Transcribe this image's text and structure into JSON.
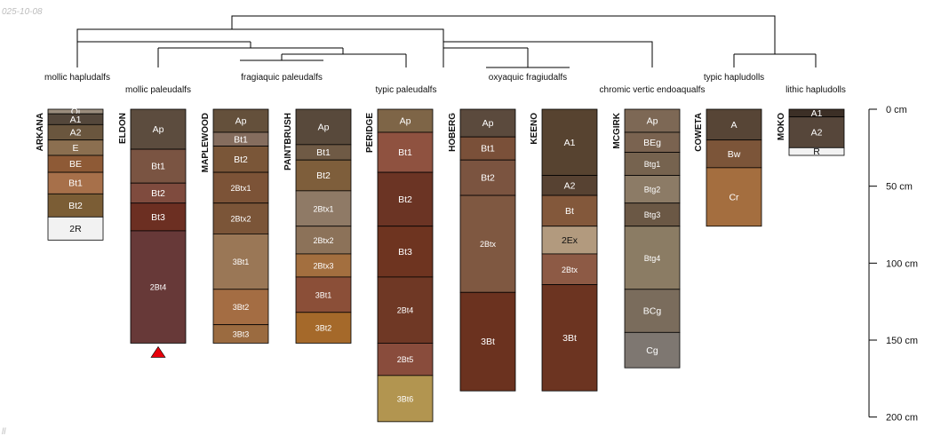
{
  "corner_top_left": "025-10-08",
  "corner_bottom_left": "ll",
  "depth_unit": "cm",
  "depth_axis": {
    "max_cm": 200,
    "labels": [
      "0 cm",
      "50 cm",
      "100 cm",
      "150 cm",
      "200 cm"
    ]
  },
  "taxa_labels": [
    "mollic hapludalfs",
    "mollic paleudalfs",
    "fragiaquic paleudalfs",
    "typic paleudalfs",
    "oxyaquic fragiudalfs",
    "chromic vertic endoaqualfs",
    "typic hapludolls",
    "lithic hapludolls"
  ],
  "profiles": [
    {
      "name": "ARKANA",
      "taxon": "mollic hapludalfs",
      "horizons": [
        {
          "name": "Oi",
          "top": 0,
          "bottom": 3,
          "color": "#9a8c7c"
        },
        {
          "name": "A1",
          "top": 3,
          "bottom": 10,
          "color": "#54473b"
        },
        {
          "name": "A2",
          "top": 10,
          "bottom": 20,
          "color": "#6a563e"
        },
        {
          "name": "E",
          "top": 20,
          "bottom": 30,
          "color": "#8b6f50"
        },
        {
          "name": "BE",
          "top": 30,
          "bottom": 41,
          "color": "#8e5a36"
        },
        {
          "name": "Bt1",
          "top": 41,
          "bottom": 55,
          "color": "#a7704a"
        },
        {
          "name": "Bt2",
          "top": 55,
          "bottom": 70,
          "color": "#7b5d35"
        },
        {
          "name": "2R",
          "top": 70,
          "bottom": 85,
          "color": "#f2f2f2"
        }
      ]
    },
    {
      "name": "ELDON",
      "taxon": "mollic paleudalfs",
      "truncated": true,
      "horizons": [
        {
          "name": "Ap",
          "top": 0,
          "bottom": 26,
          "color": "#5c4c3e"
        },
        {
          "name": "Bt1",
          "top": 26,
          "bottom": 48,
          "color": "#7a5442"
        },
        {
          "name": "Bt2",
          "top": 48,
          "bottom": 61,
          "color": "#7f4b3e"
        },
        {
          "name": "Bt3",
          "top": 61,
          "bottom": 79,
          "color": "#6c2f22"
        },
        {
          "name": "2Bt4",
          "top": 79,
          "bottom": 152,
          "color": "#673938"
        }
      ]
    },
    {
      "name": "MAPLEWOOD",
      "taxon": "fragiaquic paleudalfs",
      "horizons": [
        {
          "name": "Ap",
          "top": 0,
          "bottom": 15,
          "color": "#64503b"
        },
        {
          "name": "Bt1",
          "top": 15,
          "bottom": 24,
          "color": "#856d5e"
        },
        {
          "name": "Bt2",
          "top": 24,
          "bottom": 41,
          "color": "#7a5638"
        },
        {
          "name": "2Btx1",
          "top": 41,
          "bottom": 61,
          "color": "#7c5337"
        },
        {
          "name": "2Btx2",
          "top": 61,
          "bottom": 81,
          "color": "#7b5538"
        },
        {
          "name": "3Bt1",
          "top": 81,
          "bottom": 117,
          "color": "#9a7756"
        },
        {
          "name": "3Bt2",
          "top": 117,
          "bottom": 140,
          "color": "#a46d43"
        },
        {
          "name": "3Bt3",
          "top": 140,
          "bottom": 152,
          "color": "#9b6b40"
        }
      ]
    },
    {
      "name": "PAINTBRUSH",
      "taxon": "fragiaquic paleudalfs",
      "horizons": [
        {
          "name": "Ap",
          "top": 0,
          "bottom": 23,
          "color": "#58493b"
        },
        {
          "name": "Bt1",
          "top": 23,
          "bottom": 33,
          "color": "#6f5a45"
        },
        {
          "name": "Bt2",
          "top": 33,
          "bottom": 53,
          "color": "#7e5e3b"
        },
        {
          "name": "2Btx1",
          "top": 53,
          "bottom": 76,
          "color": "#8f7a66"
        },
        {
          "name": "2Btx2",
          "top": 76,
          "bottom": 94,
          "color": "#8c7259"
        },
        {
          "name": "2Btx3",
          "top": 94,
          "bottom": 109,
          "color": "#a36f3f"
        },
        {
          "name": "3Bt1",
          "top": 109,
          "bottom": 132,
          "color": "#8b4f38"
        },
        {
          "name": "3Bt2",
          "top": 132,
          "bottom": 152,
          "color": "#a5692a"
        }
      ]
    },
    {
      "name": "PERIDGE",
      "taxon": "typic paleudalfs",
      "horizons": [
        {
          "name": "Ap",
          "top": 0,
          "bottom": 15,
          "color": "#7e6547"
        },
        {
          "name": "Bt1",
          "top": 15,
          "bottom": 41,
          "color": "#8f5240"
        },
        {
          "name": "Bt2",
          "top": 41,
          "bottom": 76,
          "color": "#6b3424"
        },
        {
          "name": "Bt3",
          "top": 76,
          "bottom": 109,
          "color": "#6e3420"
        },
        {
          "name": "2Bt4",
          "top": 109,
          "bottom": 152,
          "color": "#6f3825"
        },
        {
          "name": "2Bt5",
          "top": 152,
          "bottom": 173,
          "color": "#894c3c"
        },
        {
          "name": "3Bt6",
          "top": 173,
          "bottom": 203,
          "color": "#b29550"
        }
      ]
    },
    {
      "name": "HOBERG",
      "taxon": "oxyaquic fragiudalfs",
      "horizons": [
        {
          "name": "Ap",
          "top": 0,
          "bottom": 18,
          "color": "#5b4a3d"
        },
        {
          "name": "Bt1",
          "top": 18,
          "bottom": 33,
          "color": "#7a5039"
        },
        {
          "name": "Bt2",
          "top": 33,
          "bottom": 56,
          "color": "#7b5440"
        },
        {
          "name": "2Btx",
          "top": 56,
          "bottom": 119,
          "color": "#7f5841"
        },
        {
          "name": "3Bt",
          "top": 119,
          "bottom": 183,
          "color": "#6b321f"
        }
      ]
    },
    {
      "name": "KEENO",
      "taxon": "oxyaquic fragiudalfs",
      "horizons": [
        {
          "name": "A1",
          "top": 0,
          "bottom": 43,
          "color": "#574330"
        },
        {
          "name": "A2",
          "top": 43,
          "bottom": 56,
          "color": "#574232"
        },
        {
          "name": "Bt",
          "top": 56,
          "bottom": 76,
          "color": "#83583b"
        },
        {
          "name": "2Ex",
          "top": 76,
          "bottom": 94,
          "color": "#b29a7e"
        },
        {
          "name": "2Btx",
          "top": 94,
          "bottom": 114,
          "color": "#8d5a45"
        },
        {
          "name": "3Bt",
          "top": 114,
          "bottom": 183,
          "color": "#6c3421"
        }
      ]
    },
    {
      "name": "MCGIRK",
      "taxon": "chromic vertic endoaqualfs",
      "horizons": [
        {
          "name": "Ap",
          "top": 0,
          "bottom": 15,
          "color": "#7d6855"
        },
        {
          "name": "BEg",
          "top": 15,
          "bottom": 28,
          "color": "#7a6350"
        },
        {
          "name": "Btg1",
          "top": 28,
          "bottom": 43,
          "color": "#76634f"
        },
        {
          "name": "Btg2",
          "top": 43,
          "bottom": 61,
          "color": "#8c7b66"
        },
        {
          "name": "Btg3",
          "top": 61,
          "bottom": 76,
          "color": "#6b5845"
        },
        {
          "name": "Btg4",
          "top": 76,
          "bottom": 117,
          "color": "#8b7c64"
        },
        {
          "name": "BCg",
          "top": 117,
          "bottom": 145,
          "color": "#7a6c5c"
        },
        {
          "name": "Cg",
          "top": 145,
          "bottom": 168,
          "color": "#7e7771"
        }
      ]
    },
    {
      "name": "COWETA",
      "taxon": "typic hapludolls",
      "horizons": [
        {
          "name": "A",
          "top": 0,
          "bottom": 20,
          "color": "#574536"
        },
        {
          "name": "Bw",
          "top": 20,
          "bottom": 38,
          "color": "#7c5539"
        },
        {
          "name": "Cr",
          "top": 38,
          "bottom": 76,
          "color": "#a46e3f"
        }
      ]
    },
    {
      "name": "MOKO",
      "taxon": "lithic hapludolls",
      "horizons": [
        {
          "name": "A1",
          "top": 0,
          "bottom": 5,
          "color": "#3c2f26"
        },
        {
          "name": "A2",
          "top": 5,
          "bottom": 25,
          "color": "#56463a"
        },
        {
          "name": "R",
          "top": 25,
          "bottom": 30,
          "color": "#f2f2f2"
        }
      ]
    }
  ]
}
